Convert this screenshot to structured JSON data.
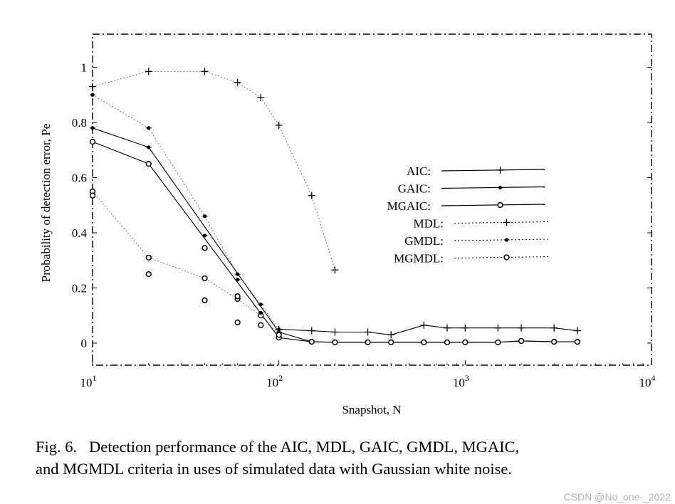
{
  "chart_data": {
    "type": "line",
    "x_scale": "log",
    "xlabel": "Snapshot, N",
    "ylabel": "Probability of detection error, Pe",
    "xlim": [
      10,
      10000
    ],
    "ylim": [
      -0.08,
      1.12
    ],
    "x_ticks": [
      {
        "value": 10,
        "label": "10",
        "exp": "1"
      },
      {
        "value": 100,
        "label": "10",
        "exp": "2"
      },
      {
        "value": 1000,
        "label": "10",
        "exp": "3"
      },
      {
        "value": 10000,
        "label": "10",
        "exp": "4"
      }
    ],
    "y_ticks": [
      {
        "value": 0,
        "label": "0"
      },
      {
        "value": 0.2,
        "label": "0.2"
      },
      {
        "value": 0.4,
        "label": "0.4"
      },
      {
        "value": 0.6,
        "label": "0.6"
      },
      {
        "value": 0.8,
        "label": "0.8"
      },
      {
        "value": 1,
        "label": "1"
      }
    ],
    "series": [
      {
        "name": "AIC:",
        "marker": "+",
        "style": "solid",
        "x": [
          100,
          150,
          200,
          300,
          400,
          600,
          800,
          1000,
          1500,
          2000,
          3000,
          4000
        ],
        "y": [
          0.05,
          0.045,
          0.04,
          0.04,
          0.03,
          0.065,
          0.055,
          0.055,
          0.055,
          0.055,
          0.055,
          0.045
        ]
      },
      {
        "name": "GAIC:",
        "marker": "*",
        "style": "solid",
        "x": [
          10,
          20,
          100,
          150,
          200,
          300,
          400,
          600,
          800,
          1000,
          1500,
          2000,
          3000,
          4000
        ],
        "y": [
          0.78,
          0.71,
          0.04,
          0.005,
          0.003,
          0.003,
          0.003,
          0.003,
          0.003,
          0.003,
          0.003,
          0.008,
          0.005,
          0.005
        ]
      },
      {
        "name": "MGAIC:",
        "marker": "o",
        "style": "solid",
        "x": [
          10,
          20,
          100,
          150,
          200,
          300,
          400,
          600,
          800,
          1000,
          1500,
          2000,
          3000,
          4000
        ],
        "y": [
          0.73,
          0.65,
          0.02,
          0.005,
          0.003,
          0.003,
          0.003,
          0.003,
          0.003,
          0.003,
          0.003,
          0.008,
          0.005,
          0.005
        ]
      },
      {
        "name": "MDL:",
        "marker": "+",
        "style": "dotted",
        "x": [
          10,
          20,
          40,
          60,
          80,
          100,
          150,
          200
        ],
        "y": [
          0.93,
          0.985,
          0.985,
          0.945,
          0.89,
          0.79,
          0.535,
          0.265
        ]
      },
      {
        "name": "GMDL:",
        "marker": "*",
        "style": "dotted",
        "x": [
          10,
          20,
          40,
          60,
          80,
          100
        ],
        "y": [
          0.9,
          0.78,
          0.46,
          0.25,
          0.14,
          0.05
        ]
      },
      {
        "name": "MGMDL:",
        "marker": "o",
        "style": "dotted",
        "x": [
          10,
          20,
          40,
          60,
          80,
          100
        ],
        "y": [
          0.55,
          0.31,
          0.235,
          0.16,
          0.1,
          0.03
        ]
      }
    ],
    "extra_points": [
      {
        "marker": "*",
        "x": 40,
        "y": 0.39
      },
      {
        "marker": "o",
        "x": 40,
        "y": 0.345
      },
      {
        "marker": "o",
        "x": 10,
        "y": 0.535
      },
      {
        "marker": "o",
        "x": 20,
        "y": 0.25
      },
      {
        "marker": "o",
        "x": 40,
        "y": 0.155
      },
      {
        "marker": "*",
        "x": 60,
        "y": 0.23
      },
      {
        "marker": "o",
        "x": 60,
        "y": 0.17
      },
      {
        "marker": "o",
        "x": 60,
        "y": 0.075
      },
      {
        "marker": "o",
        "x": 80,
        "y": 0.065
      },
      {
        "marker": "*",
        "x": 80,
        "y": 0.11
      }
    ],
    "legend_position": "right-middle",
    "grid": false
  },
  "caption_line1": "Fig. 6.   Detection performance of the AIC, MDL, GAIC, GMDL, MGAIC,",
  "caption_line2": "and MGMDL criteria in uses of simulated data with Gaussian white noise.",
  "watermark": "CSDN @No_one-_2022"
}
